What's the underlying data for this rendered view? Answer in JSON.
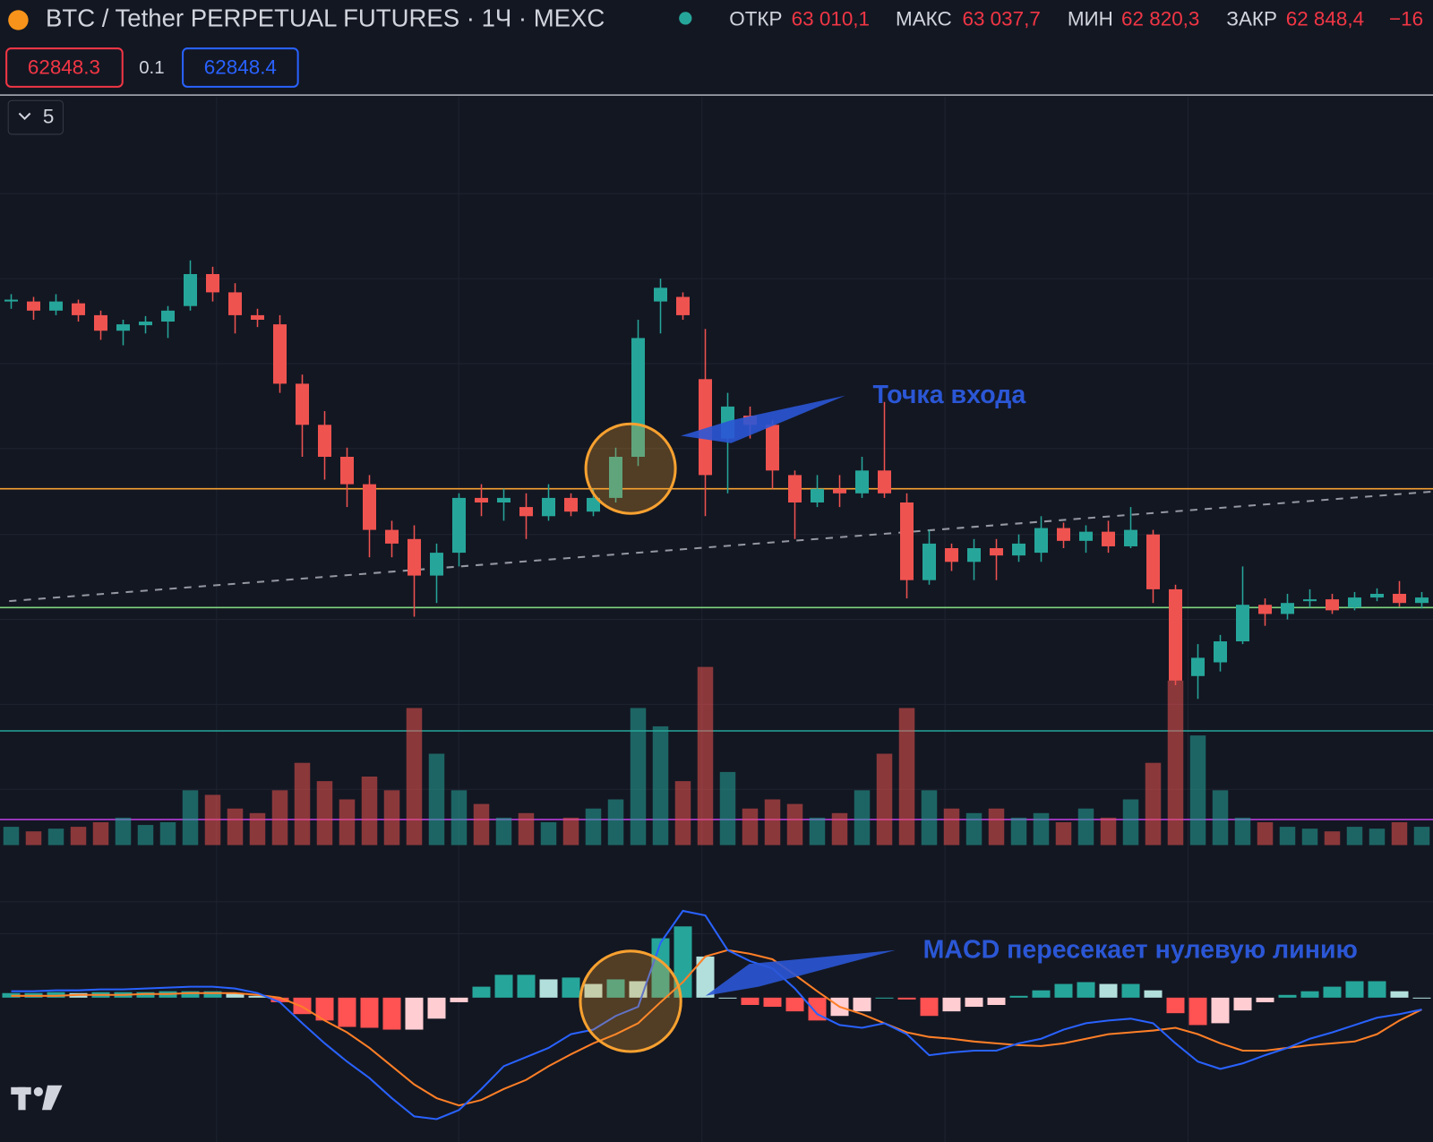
{
  "header": {
    "title": "BTC / Tether PERPETUAL FUTURES · 1Ч · MEXC",
    "ohlc": [
      {
        "label": "ОТКР",
        "value": "63 010,1"
      },
      {
        "label": "МАКС",
        "value": "63 037,7"
      },
      {
        "label": "МИН",
        "value": "62 820,3"
      },
      {
        "label": "ЗАКР",
        "value": "62 848,4"
      }
    ],
    "change": "−16",
    "sell_price": "62848.3",
    "spread": "0.1",
    "buy_price": "62848.4",
    "indicators_count": "5"
  },
  "annotations": {
    "entry": "Точка входа",
    "macd": "MACD пересекает нулевую линию"
  },
  "chart_data": {
    "type": "candlestick",
    "open": [
      63508,
      63508,
      63488,
      63504,
      63478,
      63444,
      63456,
      63464,
      63498,
      63568,
      63528,
      63478,
      63458,
      63328,
      63238,
      63168,
      63108,
      63008,
      62988,
      62908,
      62958,
      63078,
      63068,
      63058,
      63038,
      63078,
      63048,
      63078,
      63168,
      63508,
      63518,
      63338,
      63208,
      63258,
      63238,
      63128,
      63068,
      63098,
      63088,
      63138,
      63068,
      62898,
      62968,
      62938,
      62968,
      62952,
      62958,
      63012,
      62984,
      63004,
      62972,
      62998,
      62878,
      62688,
      62718,
      62764,
      62844,
      62824,
      62852,
      62856,
      62838,
      62860,
      62868,
      62848
    ],
    "high": [
      63524,
      63518,
      63524,
      63512,
      63488,
      63468,
      63476,
      63498,
      63598,
      63584,
      63548,
      63492,
      63478,
      63348,
      63268,
      63188,
      63128,
      63028,
      63018,
      62978,
      63088,
      63108,
      63098,
      63088,
      63108,
      63088,
      63098,
      63188,
      63468,
      63558,
      63528,
      63448,
      63308,
      63278,
      63248,
      63138,
      63128,
      63128,
      63168,
      63288,
      63088,
      63008,
      62978,
      62988,
      62988,
      62998,
      63038,
      63024,
      63018,
      63028,
      63058,
      63008,
      62888,
      62758,
      62778,
      62928,
      62858,
      62868,
      62878,
      62868,
      62872,
      62880,
      62896,
      62872
    ],
    "low": [
      63492,
      63468,
      63478,
      63464,
      63424,
      63412,
      63438,
      63428,
      63488,
      63508,
      63438,
      63452,
      63308,
      63168,
      63118,
      63058,
      62948,
      62948,
      62818,
      62848,
      62928,
      63038,
      63028,
      62988,
      63028,
      63038,
      63038,
      63068,
      63148,
      63438,
      63468,
      63038,
      63088,
      63208,
      63098,
      62988,
      63058,
      63058,
      63078,
      63078,
      62858,
      62888,
      62918,
      62898,
      62898,
      62938,
      62938,
      62968,
      62958,
      62958,
      62968,
      62848,
      62668,
      62638,
      62698,
      62758,
      62798,
      62812,
      62838,
      62824,
      62832,
      62852,
      62840,
      62836
    ],
    "close": [
      63512,
      63488,
      63508,
      63478,
      63444,
      63458,
      63464,
      63488,
      63568,
      63528,
      63478,
      63468,
      63328,
      63238,
      63168,
      63108,
      63008,
      62978,
      62908,
      62958,
      63078,
      63068,
      63078,
      63038,
      63078,
      63048,
      63078,
      63168,
      63428,
      63538,
      63478,
      63128,
      63278,
      63238,
      63138,
      63068,
      63098,
      63088,
      63138,
      63088,
      62898,
      62978,
      62938,
      62968,
      62952,
      62978,
      63012,
      62984,
      63004,
      62972,
      63008,
      62878,
      62678,
      62728,
      62764,
      62844,
      62824,
      62848,
      62856,
      62832,
      62860,
      62868,
      62848,
      62860
    ],
    "ylim": [
      62568,
      63948
    ],
    "levels": [
      {
        "color": "#f7a130",
        "value": 63098
      },
      {
        "color": "#7fd67f",
        "value": 62838
      }
    ],
    "trendline": [
      62852,
      63092
    ],
    "colors": {
      "up": "#26a69a",
      "down": "#ef5350"
    },
    "volume": [
      20,
      15,
      18,
      20,
      25,
      30,
      22,
      25,
      60,
      55,
      40,
      35,
      60,
      90,
      70,
      50,
      75,
      60,
      150,
      100,
      60,
      45,
      30,
      35,
      25,
      30,
      40,
      50,
      150,
      130,
      70,
      195,
      80,
      40,
      50,
      45,
      30,
      35,
      60,
      100,
      150,
      60,
      40,
      35,
      40,
      30,
      35,
      25,
      40,
      30,
      50,
      90,
      180,
      120,
      60,
      30,
      25,
      20,
      18,
      15,
      20,
      18,
      25,
      20
    ],
    "vlim": [
      0,
      240
    ],
    "macd": {
      "line": [
        7,
        7,
        8,
        8,
        9,
        9,
        10,
        11,
        12,
        12,
        10,
        5,
        -5,
        -28,
        -50,
        -70,
        -88,
        -110,
        -130,
        -133,
        -123,
        -100,
        -75,
        -65,
        -55,
        -40,
        -35,
        -20,
        -10,
        60,
        95,
        90,
        52,
        40,
        32,
        10,
        -18,
        -30,
        -33,
        -28,
        -40,
        -63,
        -60,
        -58,
        -58,
        -50,
        -45,
        -35,
        -28,
        -25,
        -23,
        -28,
        -50,
        -70,
        -78,
        -72,
        -63,
        -55,
        -45,
        -38,
        -30,
        -22,
        -18,
        -13
      ],
      "signal": [
        2,
        2,
        2,
        3,
        3,
        3,
        4,
        4,
        5,
        5,
        5,
        3,
        0,
        -10,
        -25,
        -38,
        -55,
        -75,
        -95,
        -110,
        -118,
        -112,
        -100,
        -90,
        -75,
        -62,
        -50,
        -40,
        -28,
        -5,
        17,
        45,
        52,
        48,
        42,
        25,
        7,
        -10,
        -18,
        -28,
        -38,
        -43,
        -45,
        -48,
        -50,
        -52,
        -53,
        -50,
        -45,
        -40,
        -38,
        -36,
        -33,
        -40,
        -50,
        -58,
        -58,
        -55,
        -52,
        -50,
        -48,
        -40,
        -25,
        -13
      ],
      "histogram": [
        5,
        5,
        6,
        5,
        6,
        6,
        6,
        7,
        7,
        7,
        5,
        2,
        -5,
        -18,
        -25,
        -32,
        -33,
        -35,
        -35,
        -23,
        -5,
        12,
        25,
        25,
        20,
        22,
        15,
        20,
        18,
        65,
        78,
        45,
        0,
        -8,
        -10,
        -15,
        -25,
        -20,
        -15,
        0,
        -2,
        -20,
        -15,
        -10,
        -8,
        2,
        8,
        15,
        17,
        15,
        15,
        8,
        -17,
        -30,
        -28,
        -14,
        -5,
        3,
        7,
        12,
        18,
        18,
        7,
        0
      ],
      "line_color": "#2962ff",
      "signal_color": "#ff7f27",
      "ylim": [
        -160,
        100
      ]
    }
  }
}
